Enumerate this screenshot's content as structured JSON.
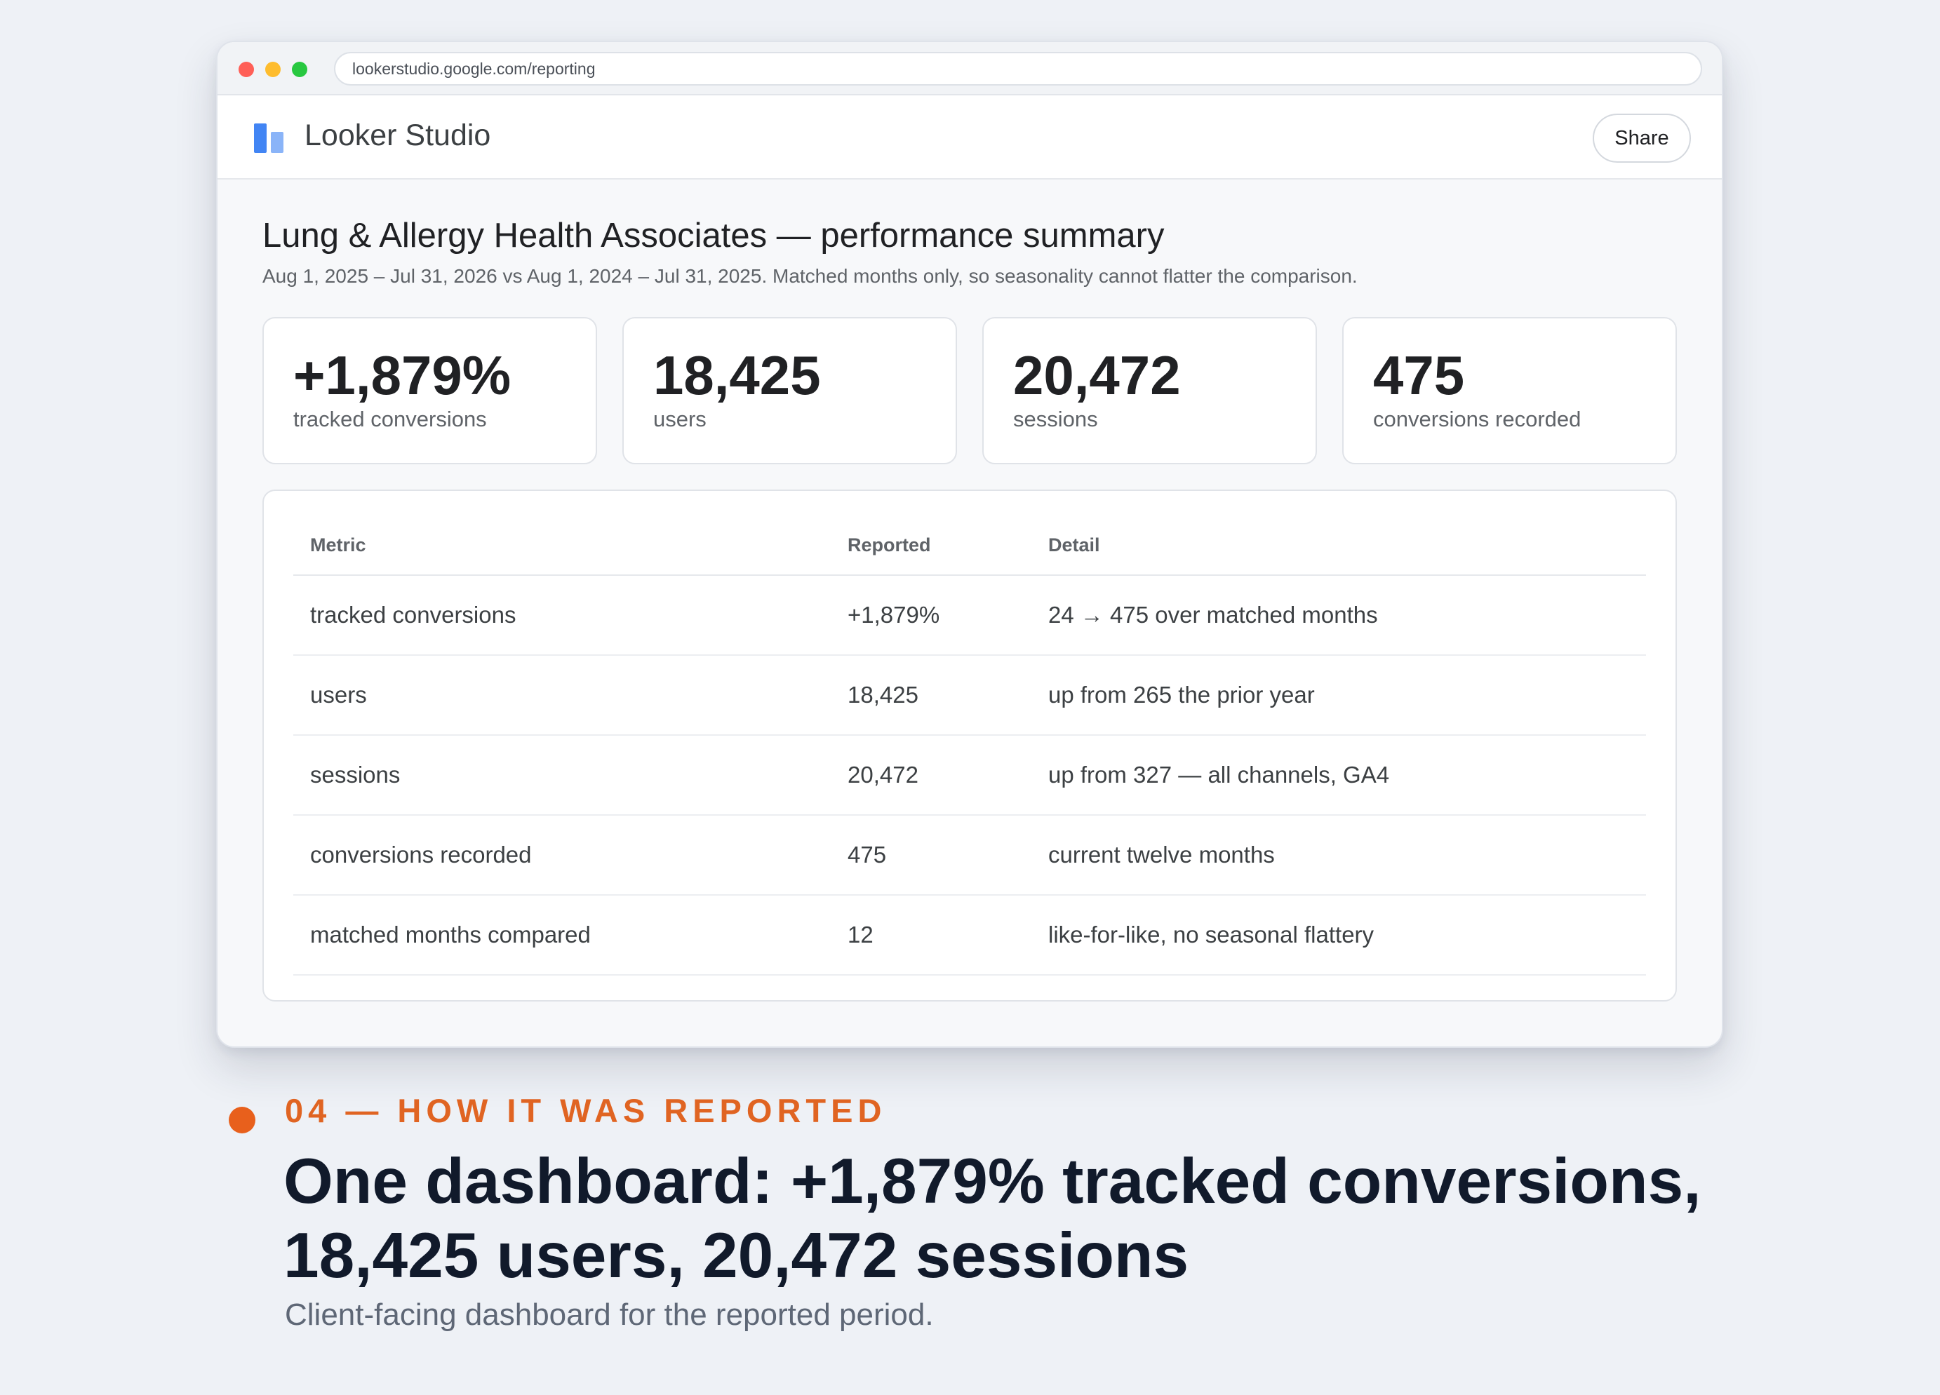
{
  "browser": {
    "url": "lookerstudio.google.com/reporting"
  },
  "app": {
    "name": "Looker Studio",
    "share_label": "Share"
  },
  "report": {
    "title": "Lung & Allergy Health Associates — performance summary",
    "subtitle": "Aug 1, 2025 – Jul 31, 2026 vs Aug 1, 2024 – Jul 31, 2025. Matched months only, so seasonality cannot flatter the comparison."
  },
  "kpis": [
    {
      "value": "+1,879%",
      "label": "tracked conversions"
    },
    {
      "value": "18,425",
      "label": "users"
    },
    {
      "value": "20,472",
      "label": "sessions"
    },
    {
      "value": "475",
      "label": "conversions recorded"
    }
  ],
  "table": {
    "headers": [
      "Metric",
      "Reported",
      "Detail"
    ],
    "rows": [
      [
        "tracked conversions",
        "+1,879%",
        "24 → 475 over matched months"
      ],
      [
        "users",
        "18,425",
        "up from 265 the prior year"
      ],
      [
        "sessions",
        "20,472",
        "up from 327 — all channels, GA4"
      ],
      [
        "conversions recorded",
        "475",
        "current twelve months"
      ],
      [
        "matched months compared",
        "12",
        "like-for-like, no seasonal flattery"
      ]
    ]
  },
  "caption": {
    "eyebrow": "04 — HOW IT WAS REPORTED",
    "headline_line1": "One dashboard: +1,879% tracked conversions,",
    "headline_line2": "18,425 users, 20,472 sessions",
    "subline": "Client-facing dashboard for the reported period."
  },
  "colors": {
    "accent": "#e06422",
    "headline": "#111a2b",
    "logo_primary": "#4285f4",
    "logo_secondary": "#8ab4f8"
  }
}
